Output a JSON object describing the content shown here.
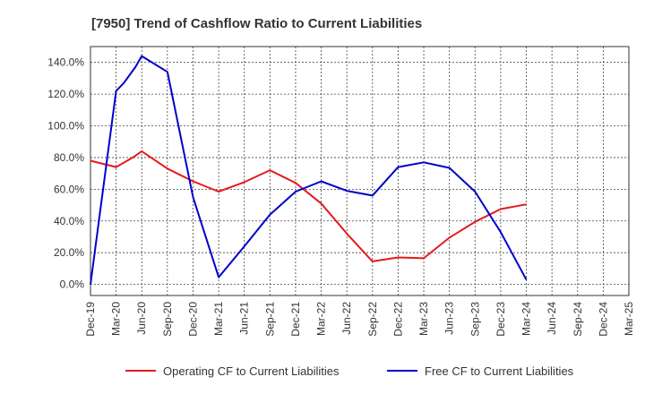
{
  "chart_data": {
    "type": "line",
    "title": "[7950]  Trend of Cashflow Ratio to Current Liabilities",
    "xlabel": "",
    "ylabel": "",
    "x": [
      "Dec-19",
      "Mar-20",
      "Jun-20",
      "Sep-20",
      "Dec-20",
      "Mar-21",
      "Jun-21",
      "Sep-21",
      "Dec-21",
      "Mar-22",
      "Jun-22",
      "Sep-22",
      "Dec-22",
      "Mar-23",
      "Jun-23",
      "Sep-23",
      "Dec-23",
      "Mar-24",
      "Jun-24",
      "Sep-24",
      "Dec-24",
      "Mar-25"
    ],
    "y_ticks": [
      "0.0%",
      "20.0%",
      "40.0%",
      "60.0%",
      "80.0%",
      "100.0%",
      "120.0%",
      "140.0%"
    ],
    "ylim": [
      -7,
      150
    ],
    "grid": true,
    "legend_position": "bottom",
    "series": [
      {
        "name": "Operating CF to Current Liabilities",
        "color": "#e41a1c",
        "points": [
          {
            "x": 0,
            "y": 78
          },
          {
            "x": 1,
            "y": 74
          },
          {
            "x": 1.65,
            "y": 80
          },
          {
            "x": 2,
            "y": 84
          },
          {
            "x": 3,
            "y": 73
          },
          {
            "x": 4,
            "y": 65
          },
          {
            "x": 5,
            "y": 58.5
          },
          {
            "x": 6,
            "y": 64.5
          },
          {
            "x": 7,
            "y": 72
          },
          {
            "x": 8,
            "y": 64
          },
          {
            "x": 9,
            "y": 51
          },
          {
            "x": 10,
            "y": 32
          },
          {
            "x": 11,
            "y": 14.5
          },
          {
            "x": 12,
            "y": 17
          },
          {
            "x": 13,
            "y": 16.5
          },
          {
            "x": 14,
            "y": 29.5
          },
          {
            "x": 15,
            "y": 39.5
          },
          {
            "x": 16,
            "y": 47.5
          },
          {
            "x": 17,
            "y": 50.5
          }
        ]
      },
      {
        "name": "Free CF to Current Liabilities",
        "color": "#0000cc",
        "points": [
          {
            "x": 0,
            "y": 0
          },
          {
            "x": 1,
            "y": 122
          },
          {
            "x": 1.3,
            "y": 127
          },
          {
            "x": 1.75,
            "y": 137
          },
          {
            "x": 2,
            "y": 144
          },
          {
            "x": 3,
            "y": 134
          },
          {
            "x": 4,
            "y": 55
          },
          {
            "x": 5,
            "y": 4.5
          },
          {
            "x": 6,
            "y": 24
          },
          {
            "x": 7,
            "y": 44
          },
          {
            "x": 8,
            "y": 58.5
          },
          {
            "x": 9,
            "y": 65
          },
          {
            "x": 10,
            "y": 59
          },
          {
            "x": 11,
            "y": 56
          },
          {
            "x": 12,
            "y": 74
          },
          {
            "x": 13,
            "y": 77
          },
          {
            "x": 14,
            "y": 73.5
          },
          {
            "x": 15,
            "y": 58.5
          },
          {
            "x": 16,
            "y": 33
          },
          {
            "x": 17,
            "y": 3
          }
        ]
      }
    ]
  }
}
